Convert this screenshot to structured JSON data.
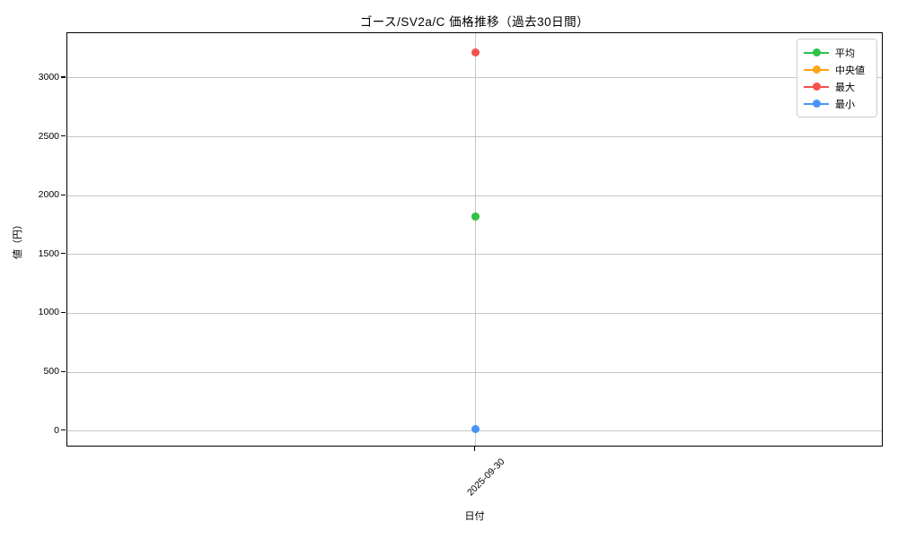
{
  "chart_data": {
    "type": "line",
    "title": "ゴース/SV2a/C 価格推移（過去30日間）",
    "xlabel": "日付",
    "ylabel": "値（円）",
    "categories": [
      "2025-09-30"
    ],
    "series": [
      {
        "name": "平均",
        "color": "#2dc24a",
        "values": [
          1820
        ]
      },
      {
        "name": "中央値",
        "color": "#ffa414",
        "values": [
          1820
        ]
      },
      {
        "name": "最大",
        "color": "#f4514d",
        "values": [
          3220
        ]
      },
      {
        "name": "最小",
        "color": "#4a94f8",
        "values": [
          20
        ]
      }
    ],
    "median_marker_hidden": true,
    "ylim": [
      -140,
      3380
    ],
    "yticks": [
      0,
      500,
      1000,
      1500,
      2000,
      2500,
      3000
    ],
    "grid": true,
    "legend_position": "upper right",
    "marker": "circle"
  },
  "colors": {
    "grid": "#c6c6c6",
    "spine": "#000000",
    "text": "#000000",
    "legend_border": "#cccccc"
  }
}
